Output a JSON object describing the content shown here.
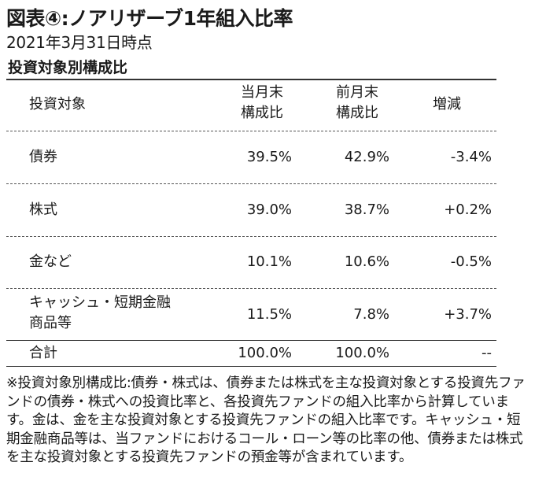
{
  "title": "図表④:ノアリザーブ1年組入比率",
  "subtitle": "2021年3月31日時点",
  "section_title": "投資対象別構成比",
  "table": {
    "headers": {
      "asset": "投資対象",
      "current_line1": "当月末",
      "current_line2": "構成比",
      "previous_line1": "前月末",
      "previous_line2": "構成比",
      "change": "増減"
    },
    "rows": [
      {
        "asset": "債券",
        "asset_line2": "",
        "current": "39.5%",
        "previous": "42.9%",
        "change": "-3.4%"
      },
      {
        "asset": "株式",
        "asset_line2": "",
        "current": "39.0%",
        "previous": "38.7%",
        "change": "+0.2%"
      },
      {
        "asset": "金など",
        "asset_line2": "",
        "current": "10.1%",
        "previous": "10.6%",
        "change": "-0.5%"
      },
      {
        "asset": "キャッシュ・短期金融",
        "asset_line2": "商品等",
        "current": "11.5%",
        "previous": "7.8%",
        "change": "+3.7%"
      }
    ],
    "total": {
      "asset": "合計",
      "current": "100.0%",
      "previous": "100.0%",
      "change": "--"
    }
  },
  "note": "※投資対象別構成比:債券・株式は、債券または株式を主な投資対象とする投資先ファンドの債券・株式への投資比率と、各投資先ファンドの組入比率から計算しています。金は、金を主な投資対象とする投資先ファンドの組入比率です。キャッシュ・短期金融商品等は、当ファンドにおけるコール・ローン等の比率の他、債券または株式を主な投資対象とする投資先ファンドの預金等が含まれています。"
}
